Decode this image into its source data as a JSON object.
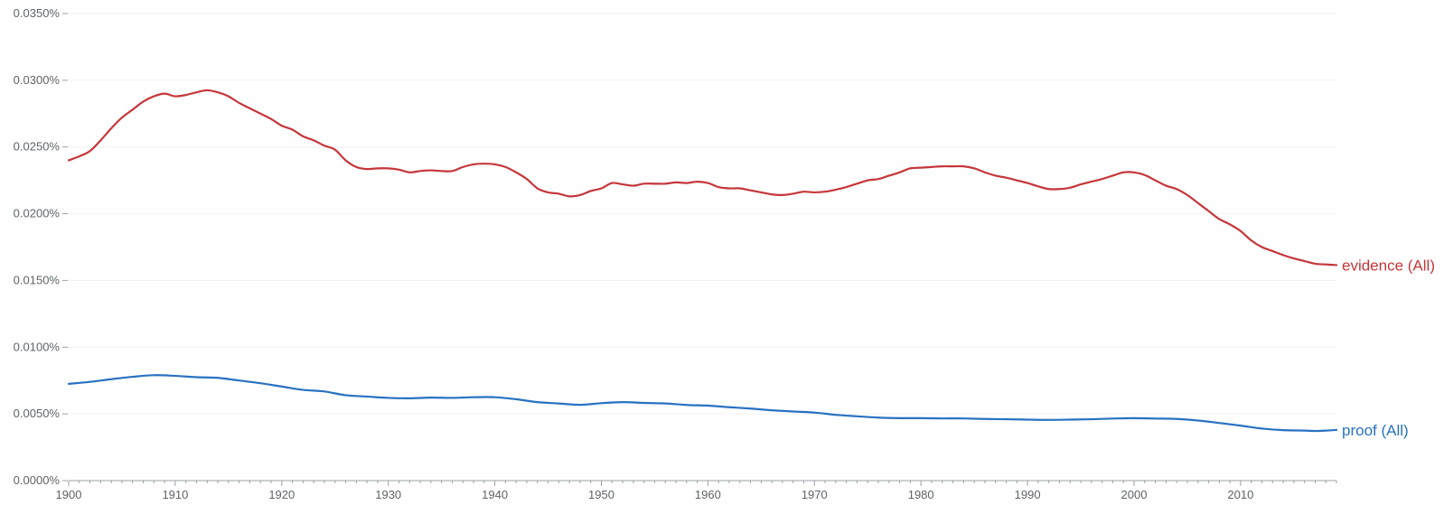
{
  "chart_data": {
    "type": "line",
    "title": "",
    "xlabel": "",
    "ylabel": "",
    "xlim": [
      1900,
      2019
    ],
    "ylim": [
      0,
      0.035
    ],
    "grid": true,
    "legend": "inline-right",
    "y_ticks": [
      {
        "value": 0.0,
        "label": "0.0000%"
      },
      {
        "value": 0.005,
        "label": "0.0050%"
      },
      {
        "value": 0.01,
        "label": "0.0100%"
      },
      {
        "value": 0.015,
        "label": "0.0150%"
      },
      {
        "value": 0.02,
        "label": "0.0200%"
      },
      {
        "value": 0.025,
        "label": "0.0250%"
      },
      {
        "value": 0.03,
        "label": "0.0300%"
      },
      {
        "value": 0.035,
        "label": "0.0350%"
      }
    ],
    "x_ticks": [
      {
        "value": 1900,
        "label": "1900"
      },
      {
        "value": 1910,
        "label": "1910"
      },
      {
        "value": 1920,
        "label": "1920"
      },
      {
        "value": 1930,
        "label": "1930"
      },
      {
        "value": 1940,
        "label": "1940"
      },
      {
        "value": 1950,
        "label": "1950"
      },
      {
        "value": 1960,
        "label": "1960"
      },
      {
        "value": 1970,
        "label": "1970"
      },
      {
        "value": 1980,
        "label": "1980"
      },
      {
        "value": 1990,
        "label": "1990"
      },
      {
        "value": 2000,
        "label": "2000"
      },
      {
        "value": 2010,
        "label": "2010"
      }
    ],
    "series": [
      {
        "name": "evidence (All)",
        "color": "#c5363a",
        "points": [
          [
            1900,
            0.024
          ],
          [
            1901,
            0.0243
          ],
          [
            1902,
            0.0247
          ],
          [
            1903,
            0.0255
          ],
          [
            1904,
            0.0264
          ],
          [
            1905,
            0.0272
          ],
          [
            1906,
            0.0278
          ],
          [
            1907,
            0.0284
          ],
          [
            1908,
            0.0288
          ],
          [
            1909,
            0.029
          ],
          [
            1910,
            0.0288
          ],
          [
            1911,
            0.0289
          ],
          [
            1912,
            0.0291
          ],
          [
            1913,
            0.02925
          ],
          [
            1914,
            0.0291
          ],
          [
            1915,
            0.0288
          ],
          [
            1916,
            0.0283
          ],
          [
            1917,
            0.0279
          ],
          [
            1918,
            0.0275
          ],
          [
            1919,
            0.0271
          ],
          [
            1920,
            0.0266
          ],
          [
            1921,
            0.0263
          ],
          [
            1922,
            0.0258
          ],
          [
            1923,
            0.0255
          ],
          [
            1924,
            0.0251
          ],
          [
            1925,
            0.0248
          ],
          [
            1926,
            0.024
          ],
          [
            1927,
            0.0235
          ],
          [
            1928,
            0.02335
          ],
          [
            1929,
            0.0234
          ],
          [
            1930,
            0.0234
          ],
          [
            1931,
            0.0233
          ],
          [
            1932,
            0.0231
          ],
          [
            1933,
            0.0232
          ],
          [
            1934,
            0.02325
          ],
          [
            1935,
            0.0232
          ],
          [
            1936,
            0.0232
          ],
          [
            1937,
            0.0235
          ],
          [
            1938,
            0.0237
          ],
          [
            1939,
            0.02375
          ],
          [
            1940,
            0.0237
          ],
          [
            1941,
            0.0235
          ],
          [
            1942,
            0.0231
          ],
          [
            1943,
            0.0226
          ],
          [
            1944,
            0.0219
          ],
          [
            1945,
            0.0216
          ],
          [
            1946,
            0.0215
          ],
          [
            1947,
            0.0213
          ],
          [
            1948,
            0.0214
          ],
          [
            1949,
            0.0217
          ],
          [
            1950,
            0.0219
          ],
          [
            1951,
            0.0223
          ],
          [
            1952,
            0.0222
          ],
          [
            1953,
            0.0221
          ],
          [
            1954,
            0.02225
          ],
          [
            1955,
            0.02225
          ],
          [
            1956,
            0.02225
          ],
          [
            1957,
            0.02235
          ],
          [
            1958,
            0.0223
          ],
          [
            1959,
            0.0224
          ],
          [
            1960,
            0.0223
          ],
          [
            1961,
            0.022
          ],
          [
            1962,
            0.0219
          ],
          [
            1963,
            0.0219
          ],
          [
            1964,
            0.02175
          ],
          [
            1965,
            0.0216
          ],
          [
            1966,
            0.02145
          ],
          [
            1967,
            0.0214
          ],
          [
            1968,
            0.0215
          ],
          [
            1969,
            0.02165
          ],
          [
            1970,
            0.0216
          ],
          [
            1971,
            0.02165
          ],
          [
            1972,
            0.0218
          ],
          [
            1973,
            0.022
          ],
          [
            1974,
            0.02225
          ],
          [
            1975,
            0.0225
          ],
          [
            1976,
            0.0226
          ],
          [
            1977,
            0.02285
          ],
          [
            1978,
            0.0231
          ],
          [
            1979,
            0.0234
          ],
          [
            1980,
            0.02345
          ],
          [
            1981,
            0.0235
          ],
          [
            1982,
            0.02355
          ],
          [
            1983,
            0.02355
          ],
          [
            1984,
            0.02355
          ],
          [
            1985,
            0.0234
          ],
          [
            1986,
            0.0231
          ],
          [
            1987,
            0.02285
          ],
          [
            1988,
            0.0227
          ],
          [
            1989,
            0.0225
          ],
          [
            1990,
            0.0223
          ],
          [
            1991,
            0.02205
          ],
          [
            1992,
            0.02185
          ],
          [
            1993,
            0.02185
          ],
          [
            1994,
            0.02195
          ],
          [
            1995,
            0.0222
          ],
          [
            1996,
            0.0224
          ],
          [
            1997,
            0.0226
          ],
          [
            1998,
            0.02285
          ],
          [
            1999,
            0.0231
          ],
          [
            2000,
            0.0231
          ],
          [
            2001,
            0.0229
          ],
          [
            2002,
            0.0225
          ],
          [
            2003,
            0.0221
          ],
          [
            2004,
            0.02185
          ],
          [
            2005,
            0.0214
          ],
          [
            2006,
            0.0208
          ],
          [
            2007,
            0.0202
          ],
          [
            2008,
            0.0196
          ],
          [
            2009,
            0.0192
          ],
          [
            2010,
            0.0187
          ],
          [
            2011,
            0.018
          ],
          [
            2012,
            0.0175
          ],
          [
            2013,
            0.0172
          ],
          [
            2014,
            0.0169
          ],
          [
            2015,
            0.01665
          ],
          [
            2016,
            0.01645
          ],
          [
            2017,
            0.01625
          ],
          [
            2018,
            0.0162
          ],
          [
            2019,
            0.01615
          ]
        ]
      },
      {
        "name": "proof (All)",
        "color": "#2872c2",
        "points": [
          [
            1900,
            0.00725
          ],
          [
            1902,
            0.0074
          ],
          [
            1904,
            0.0076
          ],
          [
            1906,
            0.00778
          ],
          [
            1908,
            0.0079
          ],
          [
            1910,
            0.00785
          ],
          [
            1912,
            0.00775
          ],
          [
            1914,
            0.0077
          ],
          [
            1916,
            0.0075
          ],
          [
            1918,
            0.0073
          ],
          [
            1920,
            0.00705
          ],
          [
            1922,
            0.0068
          ],
          [
            1924,
            0.00668
          ],
          [
            1926,
            0.0064
          ],
          [
            1928,
            0.0063
          ],
          [
            1930,
            0.0062
          ],
          [
            1932,
            0.00617
          ],
          [
            1934,
            0.00622
          ],
          [
            1936,
            0.0062
          ],
          [
            1938,
            0.00625
          ],
          [
            1940,
            0.00625
          ],
          [
            1942,
            0.0061
          ],
          [
            1944,
            0.00588
          ],
          [
            1946,
            0.00578
          ],
          [
            1948,
            0.00568
          ],
          [
            1950,
            0.0058
          ],
          [
            1952,
            0.00588
          ],
          [
            1954,
            0.00582
          ],
          [
            1956,
            0.00578
          ],
          [
            1958,
            0.00567
          ],
          [
            1960,
            0.00562
          ],
          [
            1962,
            0.0055
          ],
          [
            1964,
            0.0054
          ],
          [
            1966,
            0.00527
          ],
          [
            1968,
            0.00518
          ],
          [
            1970,
            0.0051
          ],
          [
            1972,
            0.00493
          ],
          [
            1974,
            0.00482
          ],
          [
            1976,
            0.00472
          ],
          [
            1978,
            0.00468
          ],
          [
            1980,
            0.00468
          ],
          [
            1982,
            0.00466
          ],
          [
            1984,
            0.00466
          ],
          [
            1986,
            0.00462
          ],
          [
            1988,
            0.0046
          ],
          [
            1990,
            0.00457
          ],
          [
            1992,
            0.00455
          ],
          [
            1994,
            0.00457
          ],
          [
            1996,
            0.0046
          ],
          [
            1998,
            0.00465
          ],
          [
            2000,
            0.00468
          ],
          [
            2002,
            0.00465
          ],
          [
            2004,
            0.00462
          ],
          [
            2006,
            0.0045
          ],
          [
            2008,
            0.00432
          ],
          [
            2010,
            0.00412
          ],
          [
            2012,
            0.0039
          ],
          [
            2014,
            0.00378
          ],
          [
            2016,
            0.00375
          ],
          [
            2017,
            0.00372
          ],
          [
            2018,
            0.00375
          ],
          [
            2019,
            0.0038
          ]
        ]
      }
    ]
  }
}
